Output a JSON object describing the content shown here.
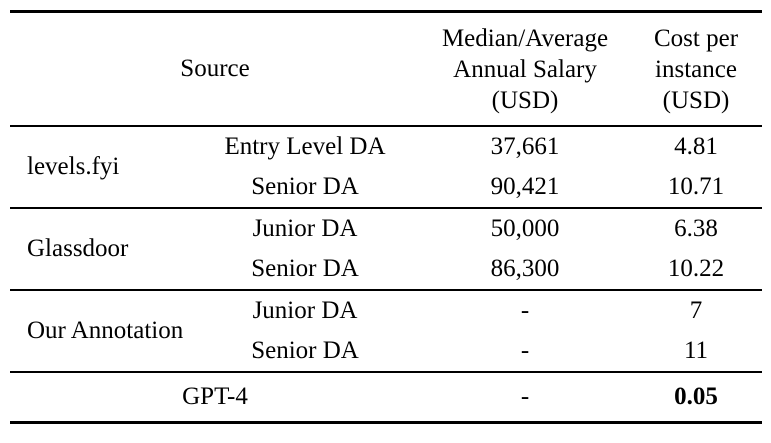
{
  "table": {
    "header": {
      "source": "Source",
      "salary_lines": [
        "Median/Average",
        "Annual Salary",
        "(USD)"
      ],
      "cost_lines": [
        "Cost per",
        "instance",
        "(USD)"
      ]
    },
    "groups": [
      {
        "source": "levels.fyi",
        "rows": [
          {
            "role": "Entry Level DA",
            "salary": "37,661",
            "cost": "4.81"
          },
          {
            "role": "Senior DA",
            "salary": "90,421",
            "cost": "10.71"
          }
        ]
      },
      {
        "source": "Glassdoor",
        "rows": [
          {
            "role": "Junior DA",
            "salary": "50,000",
            "cost": "6.38"
          },
          {
            "role": "Senior DA",
            "salary": "86,300",
            "cost": "10.22"
          }
        ]
      },
      {
        "source": "Our Annotation",
        "rows": [
          {
            "role": "Junior DA",
            "salary": "-",
            "cost": "7"
          },
          {
            "role": "Senior DA",
            "salary": "-",
            "cost": "11"
          }
        ]
      }
    ],
    "footer": {
      "label": "GPT-4",
      "salary": "-",
      "cost": "0.05"
    }
  },
  "colors": {
    "text": "#000000",
    "rule": "#000000",
    "background": "#ffffff"
  }
}
